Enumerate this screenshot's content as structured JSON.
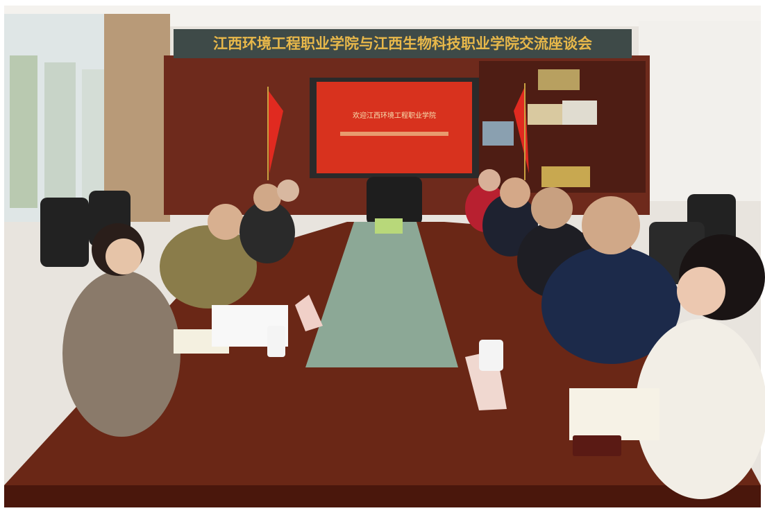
{
  "banner": {
    "text": "江西环境工程职业学院与江西生物科技职业学院交流座谈会"
  },
  "screen": {
    "line1": "欢迎江西环境工程职业学院"
  }
}
